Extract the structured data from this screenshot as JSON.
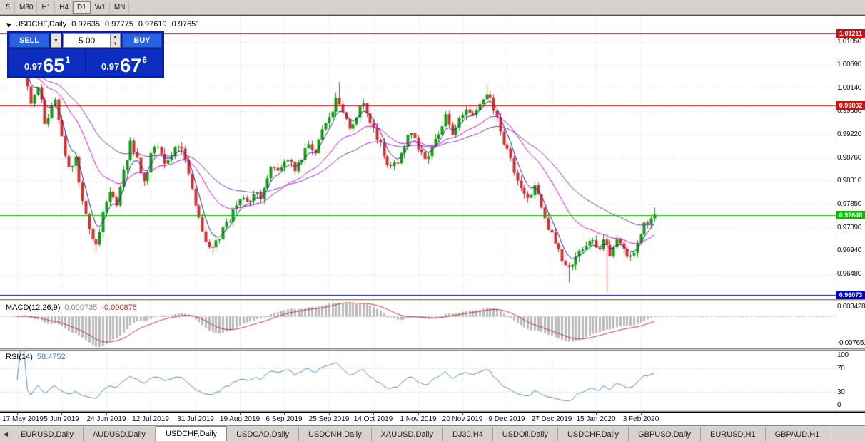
{
  "toolbar": {
    "timeframes": [
      {
        "label": "5",
        "active": false
      },
      {
        "label": "M30",
        "active": false
      },
      {
        "label": "H1",
        "active": false
      },
      {
        "label": "H4",
        "active": false
      },
      {
        "label": "D1",
        "active": true
      },
      {
        "label": "W1",
        "active": false
      },
      {
        "label": "MN",
        "active": false
      }
    ]
  },
  "symbol_header": {
    "name": "USDCHF,Daily",
    "open": "0.97635",
    "high": "0.97775",
    "low": "0.97619",
    "close": "0.97651"
  },
  "trade_panel": {
    "sell_label": "SELL",
    "buy_label": "BUY",
    "lot_value": "5.00",
    "sell_price": {
      "base": "0.97",
      "big": "65",
      "sup": "1"
    },
    "buy_price": {
      "base": "0.97",
      "big": "67",
      "sup": "6"
    },
    "colors": {
      "panel": "#0a1fa2",
      "button": "#2a62e4"
    }
  },
  "macd_panel": {
    "label": "MACD(12,26,9)",
    "value": "0.000735",
    "signal": "-0.000875"
  },
  "rsi_panel": {
    "label": "RSI(14)",
    "value": "58.4752"
  },
  "date_axis": {
    "labels": [
      "17 May 2019",
      "5 Jun 2019",
      "24 Jun 2019",
      "12 Jul 2019",
      "31 Jul 2019",
      "19 Aug 2019",
      "6 Sep 2019",
      "25 Sep 2019",
      "14 Oct 2019",
      "1 Nov 2019",
      "20 Nov 2019",
      "9 Dec 2019",
      "27 Dec 2019",
      "15 Jan 2020",
      "3 Feb 2020"
    ]
  },
  "tabs": {
    "items": [
      {
        "label": "EURUSD,Daily",
        "active": false
      },
      {
        "label": "AUDUSD,Daily",
        "active": false
      },
      {
        "label": "USDCHF,Daily",
        "active": true
      },
      {
        "label": "USDCAD,Daily",
        "active": false
      },
      {
        "label": "USDCNH,Daily",
        "active": false
      },
      {
        "label": "XAUUSD,Daily",
        "active": false
      },
      {
        "label": "DJ30,H4",
        "active": false
      },
      {
        "label": "USDOil,Daily",
        "active": false
      },
      {
        "label": "USDCHF,Daily",
        "active": false
      },
      {
        "label": "GBPUSD,Daily",
        "active": false
      },
      {
        "label": "EURUSD,H1",
        "active": false
      },
      {
        "label": "GBPAUD,H1",
        "active": false
      }
    ]
  },
  "chart_data": {
    "type": "candlestick",
    "symbol": "USDCHF",
    "timeframe": "Daily",
    "ohlc_display": {
      "open": 0.97635,
      "high": 0.97775,
      "low": 0.97619,
      "close": 0.97651
    },
    "candle_count": 187,
    "last_close": 0.97651,
    "seed": 9,
    "noise": 0.0016,
    "wick": 0.0011,
    "close_anchors": [
      [
        0,
        1.0048
      ],
      [
        2,
        1.0065
      ],
      [
        4,
        0.9985
      ],
      [
        6,
        1.002
      ],
      [
        8,
        0.995
      ],
      [
        11,
        0.9985
      ],
      [
        13,
        0.992
      ],
      [
        15,
        0.9855
      ],
      [
        17,
        0.988
      ],
      [
        19,
        0.979
      ],
      [
        21,
        0.9735
      ],
      [
        23,
        0.97
      ],
      [
        25,
        0.9775
      ],
      [
        27,
        0.981
      ],
      [
        29,
        0.978
      ],
      [
        31,
        0.9855
      ],
      [
        33,
        0.9905
      ],
      [
        35,
        0.987
      ],
      [
        37,
        0.983
      ],
      [
        39,
        0.988
      ],
      [
        41,
        0.9905
      ],
      [
        43,
        0.986
      ],
      [
        45,
        0.9885
      ],
      [
        47,
        0.9905
      ],
      [
        49,
        0.987
      ],
      [
        51,
        0.981
      ],
      [
        53,
        0.976
      ],
      [
        55,
        0.9715
      ],
      [
        57,
        0.97
      ],
      [
        59,
        0.972
      ],
      [
        61,
        0.9745
      ],
      [
        63,
        0.977
      ],
      [
        65,
        0.98
      ],
      [
        67,
        0.9785
      ],
      [
        69,
        0.981
      ],
      [
        71,
        0.9795
      ],
      [
        73,
        0.984
      ],
      [
        75,
        0.9865
      ],
      [
        77,
        0.985
      ],
      [
        79,
        0.9875
      ],
      [
        81,
        0.9855
      ],
      [
        83,
        0.988
      ],
      [
        85,
        0.991
      ],
      [
        87,
        0.989
      ],
      [
        89,
        0.993
      ],
      [
        91,
        0.996
      ],
      [
        93,
        0.999
      ],
      [
        95,
        0.9965
      ],
      [
        97,
        0.9935
      ],
      [
        99,
        0.996
      ],
      [
        101,
        0.9985
      ],
      [
        103,
        0.995
      ],
      [
        105,
        0.992
      ],
      [
        107,
        0.9885
      ],
      [
        109,
        0.9855
      ],
      [
        111,
        0.987
      ],
      [
        113,
        0.99
      ],
      [
        115,
        0.993
      ],
      [
        117,
        0.99
      ],
      [
        119,
        0.987
      ],
      [
        121,
        0.99
      ],
      [
        123,
        0.993
      ],
      [
        125,
        0.9955
      ],
      [
        127,
        0.9925
      ],
      [
        129,
        0.995
      ],
      [
        131,
        0.9975
      ],
      [
        133,
        0.9955
      ],
      [
        135,
        0.9985
      ],
      [
        137,
        1.0008
      ],
      [
        139,
        0.9975
      ],
      [
        141,
        0.993
      ],
      [
        143,
        0.989
      ],
      [
        145,
        0.9855
      ],
      [
        147,
        0.9825
      ],
      [
        149,
        0.98
      ],
      [
        151,
        0.9815
      ],
      [
        153,
        0.9785
      ],
      [
        155,
        0.974
      ],
      [
        157,
        0.9705
      ],
      [
        159,
        0.968
      ],
      [
        161,
        0.966
      ],
      [
        163,
        0.968
      ],
      [
        165,
        0.97
      ],
      [
        167,
        0.972
      ],
      [
        169,
        0.9695
      ],
      [
        171,
        0.971
      ],
      [
        173,
        0.969
      ],
      [
        175,
        0.9715
      ],
      [
        177,
        0.97
      ],
      [
        179,
        0.968
      ],
      [
        181,
        0.9715
      ],
      [
        183,
        0.9745
      ],
      [
        185,
        0.9755
      ],
      [
        186,
        0.9765
      ]
    ],
    "wick_events": [
      {
        "i": 23,
        "low": 0.9692
      },
      {
        "i": 57,
        "low": 0.9694
      },
      {
        "i": 94,
        "high": 1.0026
      },
      {
        "i": 137,
        "high": 1.0019
      },
      {
        "i": 161,
        "low": 0.9632
      },
      {
        "i": 172,
        "low": 0.9613
      },
      {
        "i": 186,
        "high": 0.9779
      }
    ],
    "levels": [
      {
        "price": 1.01211,
        "color": "#cc1111"
      },
      {
        "price": 0.99802,
        "color": "#cc1111"
      },
      {
        "price": 0.97648,
        "color": "#00c000"
      },
      {
        "price": 0.96073,
        "color": "#0000c8"
      }
    ],
    "hgrid_prices": [
      1.0105,
      1.0059,
      1.0014,
      0.9968,
      0.9922,
      0.9876,
      0.9831,
      0.9785,
      0.9739,
      0.9694,
      0.9648
    ],
    "date_tick_indices": [
      0,
      13,
      26,
      39,
      52,
      65,
      78,
      91,
      104,
      117,
      130,
      143,
      156,
      169,
      182
    ],
    "ma_periods": {
      "fast": 5,
      "mid": 20,
      "slow": 40
    },
    "macd": {
      "fast": 12,
      "slow": 26,
      "signal": 9,
      "axis_top": 0.003428,
      "axis_bottom": -0.007651
    },
    "rsi": {
      "period": 14,
      "axis": [
        100,
        70,
        30,
        0
      ],
      "levels": [
        30,
        70
      ]
    },
    "colors": {
      "up": "#129a12",
      "down": "#d03030",
      "ma_fast": "#1a2490",
      "ma_mid": "#d400d4",
      "ma_slow": "#7a30c0",
      "macd_hist": "#b9b9b9",
      "macd_signal": "#c83232",
      "rsi": "#4a87c8",
      "grid": "#d9d9d9"
    }
  }
}
